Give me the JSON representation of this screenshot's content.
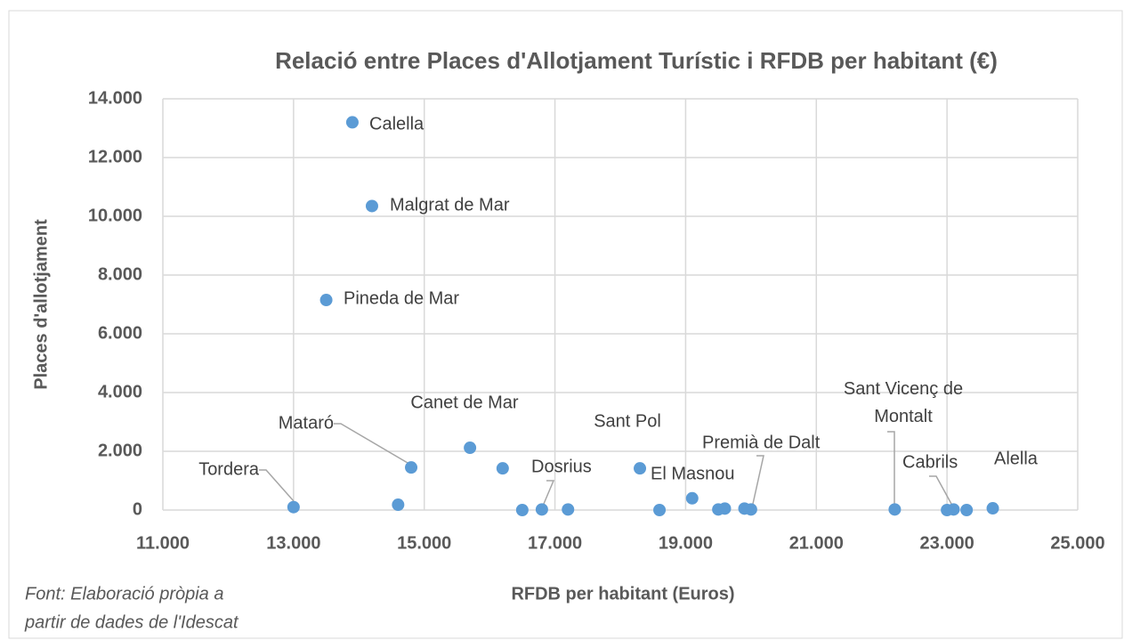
{
  "chart_data": {
    "type": "scatter",
    "title": "Relació entre Places d'Allotjament Turístic i RFDB per habitant (€)",
    "x_label": "RFDB per habitant (Euros)",
    "y_label": "Places d'allotjament",
    "source_note": [
      "Font: Elaboració pròpia a",
      "partir de dades de l'Idescat"
    ],
    "color": "#5b9bd5",
    "grid": true,
    "xlim": [
      11000,
      25000
    ],
    "ylim": [
      0,
      14000
    ],
    "xticks": [
      {
        "value": 11000,
        "label": "11.000"
      },
      {
        "value": 13000,
        "label": "13.000"
      },
      {
        "value": 15000,
        "label": "15.000"
      },
      {
        "value": 17000,
        "label": "17.000"
      },
      {
        "value": 19000,
        "label": "19.000"
      },
      {
        "value": 21000,
        "label": "21.000"
      },
      {
        "value": 23000,
        "label": "23.000"
      },
      {
        "value": 25000,
        "label": "25.000"
      }
    ],
    "yticks": [
      0,
      {
        "value": 2000,
        "label": "2.000"
      },
      {
        "value": 4000,
        "label": "4.000"
      },
      {
        "value": 6000,
        "label": "6.000"
      },
      {
        "value": 8000,
        "label": "8.000"
      },
      {
        "value": 10000,
        "label": "10.000"
      },
      {
        "value": 12000,
        "label": "12.000"
      },
      {
        "value": 14000,
        "label": "14.000"
      }
    ],
    "x": [
      13900,
      14200,
      13500,
      13000,
      14600,
      14800,
      15700,
      16200,
      16500,
      16800,
      17200,
      18600,
      18300,
      19100,
      19500,
      19600,
      19900,
      20000,
      22200,
      23000,
      23100,
      23300,
      23700
    ],
    "values": [
      13200,
      10350,
      7150,
      100,
      180,
      1450,
      2120,
      1420,
      0,
      20,
      20,
      0,
      1420,
      400,
      20,
      50,
      50,
      20,
      20,
      0,
      20,
      0,
      60
    ],
    "labels": [
      "Calella",
      "Malgrat de Mar",
      "Pineda de Mar",
      "Tordera",
      null,
      "Mataró",
      "Canet de Mar",
      null,
      null,
      "Dosrius",
      null,
      null,
      "Sant Pol",
      "El Masnou",
      null,
      null,
      null,
      "Premià de Dalt",
      "Sant Vicenç de Montalt",
      null,
      "Cabrils",
      null,
      "Alella"
    ]
  }
}
